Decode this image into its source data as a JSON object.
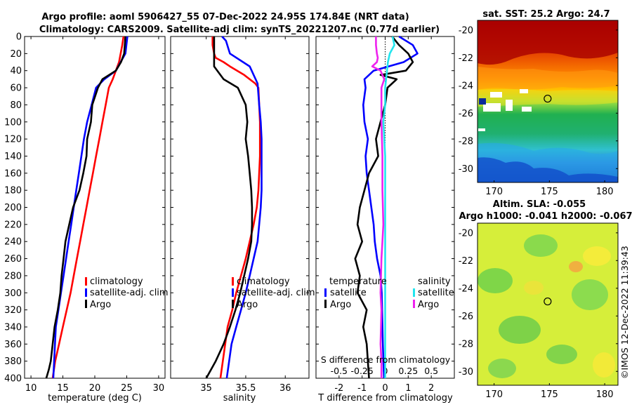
{
  "header": {
    "title_line1": "Argo profile: aoml 5906427_55 07-Dec-2022 24.95S 174.84E (NRT data)",
    "title_line2": "Climatology: CARS2009. Satellite-adj clim: synTS_20221207.nc (0.77d earlier)",
    "timestamp": "©IMOS 12-Dec-2022 11:39:43"
  },
  "colors": {
    "climatology": "#ff0000",
    "satellite": "#0000ff",
    "argo": "#000000",
    "t_sat_diff": "#0000ff",
    "s_sat_diff": "#22e5ee",
    "s_argo_diff": "#ee22ee"
  },
  "chart_data": [
    {
      "type": "line",
      "name": "temperature-profile",
      "xlabel": "temperature (deg C)",
      "xlim": [
        9,
        31
      ],
      "xticks": [
        10,
        15,
        20,
        25,
        30
      ],
      "ylim": [
        400,
        0
      ],
      "yticks": [
        0,
        20,
        40,
        60,
        80,
        100,
        120,
        140,
        160,
        180,
        200,
        220,
        240,
        260,
        280,
        300,
        320,
        340,
        360,
        380,
        400
      ],
      "legend": [
        "climatology",
        "satellite-adj. clim",
        "Argo"
      ],
      "legend_position": "bottom-right",
      "series": [
        {
          "name": "climatology",
          "color_key": "climatology",
          "x": [
            24.5,
            24.3,
            23.8,
            22.8,
            22.2,
            21.7,
            21.2,
            20.7,
            20.2,
            19.7,
            19.2,
            18.7,
            18.2,
            17.7,
            17.2,
            16.7,
            16.2,
            15.6,
            15.0,
            14.4,
            13.8,
            13.4
          ],
          "y": [
            0,
            10,
            30,
            50,
            60,
            80,
            100,
            120,
            140,
            160,
            180,
            200,
            220,
            240,
            260,
            280,
            300,
            320,
            340,
            360,
            380,
            400
          ]
        },
        {
          "name": "satellite-adj. clim",
          "color_key": "satellite",
          "x": [
            25.1,
            24.8,
            23.3,
            21.5,
            20.2,
            19.5,
            18.8,
            18.3,
            17.9,
            17.5,
            17.1,
            16.7,
            16.3,
            15.9,
            15.5,
            15.1,
            14.7,
            14.3,
            13.9,
            13.5
          ],
          "y": [
            0,
            20,
            40,
            50,
            60,
            80,
            100,
            120,
            140,
            160,
            180,
            200,
            220,
            240,
            260,
            280,
            300,
            320,
            340,
            400
          ]
        },
        {
          "name": "Argo",
          "color_key": "argo",
          "x": [
            24.8,
            24.6,
            24.1,
            23.3,
            21.2,
            20.5,
            19.6,
            19.4,
            18.8,
            18.7,
            18.2,
            17.6,
            16.6,
            16.0,
            15.4,
            15.1,
            14.8,
            14.6,
            14.2,
            13.7,
            13.4,
            13.1,
            12.8,
            12.4
          ],
          "y": [
            0,
            20,
            30,
            40,
            50,
            60,
            80,
            100,
            120,
            140,
            160,
            180,
            200,
            220,
            240,
            260,
            280,
            300,
            320,
            340,
            360,
            380,
            390,
            400
          ]
        }
      ]
    },
    {
      "type": "line",
      "name": "salinity-profile",
      "xlabel": "salinity",
      "xlim": [
        34.55,
        36.3
      ],
      "xticks": [
        35,
        35.5,
        36
      ],
      "ylim": [
        400,
        0
      ],
      "legend": [
        "climatology",
        "satellite-adj. clim",
        "Argo"
      ],
      "legend_position": "bottom-right",
      "series": [
        {
          "name": "climatology",
          "color_key": "climatology",
          "x": [
            35.08,
            35.08,
            35.1,
            35.12,
            35.22,
            35.3,
            35.48,
            35.62,
            35.66,
            35.67,
            35.68,
            35.68,
            35.68,
            35.67,
            35.66,
            35.64,
            35.6,
            35.55,
            35.5,
            35.44,
            35.38,
            35.33,
            35.27,
            35.18
          ],
          "y": [
            0,
            10,
            20,
            25,
            30,
            35,
            45,
            55,
            60,
            80,
            100,
            120,
            140,
            160,
            180,
            200,
            220,
            240,
            260,
            280,
            300,
            320,
            340,
            400
          ]
        },
        {
          "name": "satellite-adj. clim",
          "color_key": "satellite",
          "x": [
            35.2,
            35.25,
            35.3,
            35.55,
            35.65,
            35.67,
            35.69,
            35.7,
            35.7,
            35.7,
            35.7,
            35.69,
            35.67,
            35.65,
            35.6,
            35.55,
            35.5,
            35.44,
            35.38,
            35.32,
            35.26
          ],
          "y": [
            0,
            5,
            20,
            35,
            55,
            80,
            100,
            120,
            140,
            160,
            180,
            200,
            220,
            240,
            260,
            280,
            300,
            320,
            340,
            360,
            400
          ]
        },
        {
          "name": "Argo",
          "color_key": "argo",
          "x": [
            35.1,
            35.1,
            35.1,
            35.22,
            35.4,
            35.5,
            35.52,
            35.5,
            35.53,
            35.55,
            35.57,
            35.58,
            35.58,
            35.57,
            35.53,
            35.48,
            35.43,
            35.37,
            35.3,
            35.22,
            35.12,
            35.0
          ],
          "y": [
            0,
            20,
            35,
            50,
            60,
            80,
            100,
            120,
            140,
            160,
            180,
            200,
            220,
            240,
            260,
            280,
            300,
            320,
            340,
            360,
            380,
            400
          ]
        }
      ]
    },
    {
      "type": "line",
      "name": "difference-profile",
      "xlabel": "T difference from climatology",
      "xlabel_top": "S difference from climatology",
      "xlim": [
        -3,
        3
      ],
      "xticks": [
        -2,
        -1,
        0,
        1,
        2
      ],
      "xlim_top": [
        -0.75,
        0.75
      ],
      "xticks_top": [
        -0.5,
        -0.25,
        0,
        0.25,
        0.5
      ],
      "ylim": [
        400,
        0
      ],
      "legend_left_title": "temperature",
      "legend_left": [
        "satellite",
        "Argo"
      ],
      "legend_right_title": "salinity",
      "legend_right": [
        "satellite",
        "Argo"
      ],
      "series": [
        {
          "name": "T satellite",
          "color_key": "t_sat_diff",
          "axis": "bottom",
          "x": [
            0.6,
            1.2,
            1.4,
            0.8,
            -0.5,
            -0.9,
            -0.85,
            -0.95,
            -0.9,
            -0.75,
            -0.85,
            -0.8,
            -0.7,
            -0.6,
            -0.5,
            -0.45,
            -0.35,
            -0.2,
            -0.15,
            -0.1,
            -0.05
          ],
          "y": [
            0,
            10,
            20,
            30,
            40,
            50,
            60,
            80,
            100,
            120,
            140,
            160,
            180,
            200,
            220,
            240,
            260,
            280,
            300,
            360,
            400
          ]
        },
        {
          "name": "T Argo",
          "color_key": "argo",
          "axis": "bottom",
          "x": [
            0.3,
            0.6,
            1.0,
            1.2,
            0.9,
            -0.2,
            0.5,
            0.1,
            0.0,
            -0.2,
            -0.4,
            -0.3,
            -0.7,
            -0.9,
            -1.1,
            -1.2,
            -1.0,
            -1.3,
            -1.1,
            -1.2,
            -0.8,
            -0.95,
            -0.8,
            -0.7
          ],
          "y": [
            0,
            10,
            20,
            30,
            40,
            45,
            50,
            60,
            80,
            100,
            120,
            140,
            160,
            180,
            200,
            220,
            240,
            260,
            280,
            300,
            320,
            340,
            360,
            400
          ]
        },
        {
          "name": "S satellite",
          "color_key": "s_sat_diff",
          "axis": "top",
          "x": [
            0.08,
            0.1,
            0.05,
            0.03,
            0.02,
            0.0,
            0.0,
            -0.02,
            0.0,
            0.0,
            0.0,
            0.0,
            0.0,
            0.0,
            0.0,
            0.0,
            0.0
          ],
          "y": [
            0,
            10,
            20,
            30,
            40,
            60,
            80,
            100,
            140,
            160,
            200,
            240,
            280,
            300,
            340,
            380,
            400
          ]
        },
        {
          "name": "S Argo",
          "color_key": "s_argo_diff",
          "axis": "top",
          "x": [
            -0.1,
            -0.1,
            -0.09,
            -0.08,
            -0.09,
            -0.14,
            -0.05,
            -0.01,
            -0.04,
            -0.04,
            -0.03,
            -0.03,
            -0.02,
            -0.03,
            -0.04,
            -0.05,
            -0.04,
            -0.05,
            -0.04,
            -0.04
          ],
          "y": [
            0,
            10,
            20,
            25,
            30,
            35,
            40,
            50,
            60,
            100,
            140,
            180,
            220,
            240,
            260,
            300,
            320,
            360,
            380,
            400
          ]
        }
      ]
    },
    {
      "type": "heatmap",
      "name": "sst-map",
      "title": "sat. SST: 25.2 Argo: 24.7",
      "xticks": [
        170,
        175,
        180
      ],
      "yticks": [
        -20,
        -22,
        -24,
        -26,
        -28,
        -30
      ],
      "xlim": [
        168.5,
        181.2
      ],
      "ylim": [
        -31.0,
        -19.3
      ],
      "argo_position": {
        "lon": 174.84,
        "lat": -24.95
      }
    },
    {
      "type": "heatmap",
      "name": "sla-map",
      "title_line1": "Altim. SLA: -0.055",
      "title_line2": "Argo h1000: -0.041 h2000: -0.067",
      "xticks": [
        170,
        175,
        180
      ],
      "yticks": [
        -20,
        -22,
        -24,
        -26,
        -28,
        -30
      ],
      "xlim": [
        168.5,
        181.2
      ],
      "ylim": [
        -31.0,
        -19.3
      ],
      "argo_position": {
        "lon": 174.84,
        "lat": -24.95
      }
    }
  ]
}
